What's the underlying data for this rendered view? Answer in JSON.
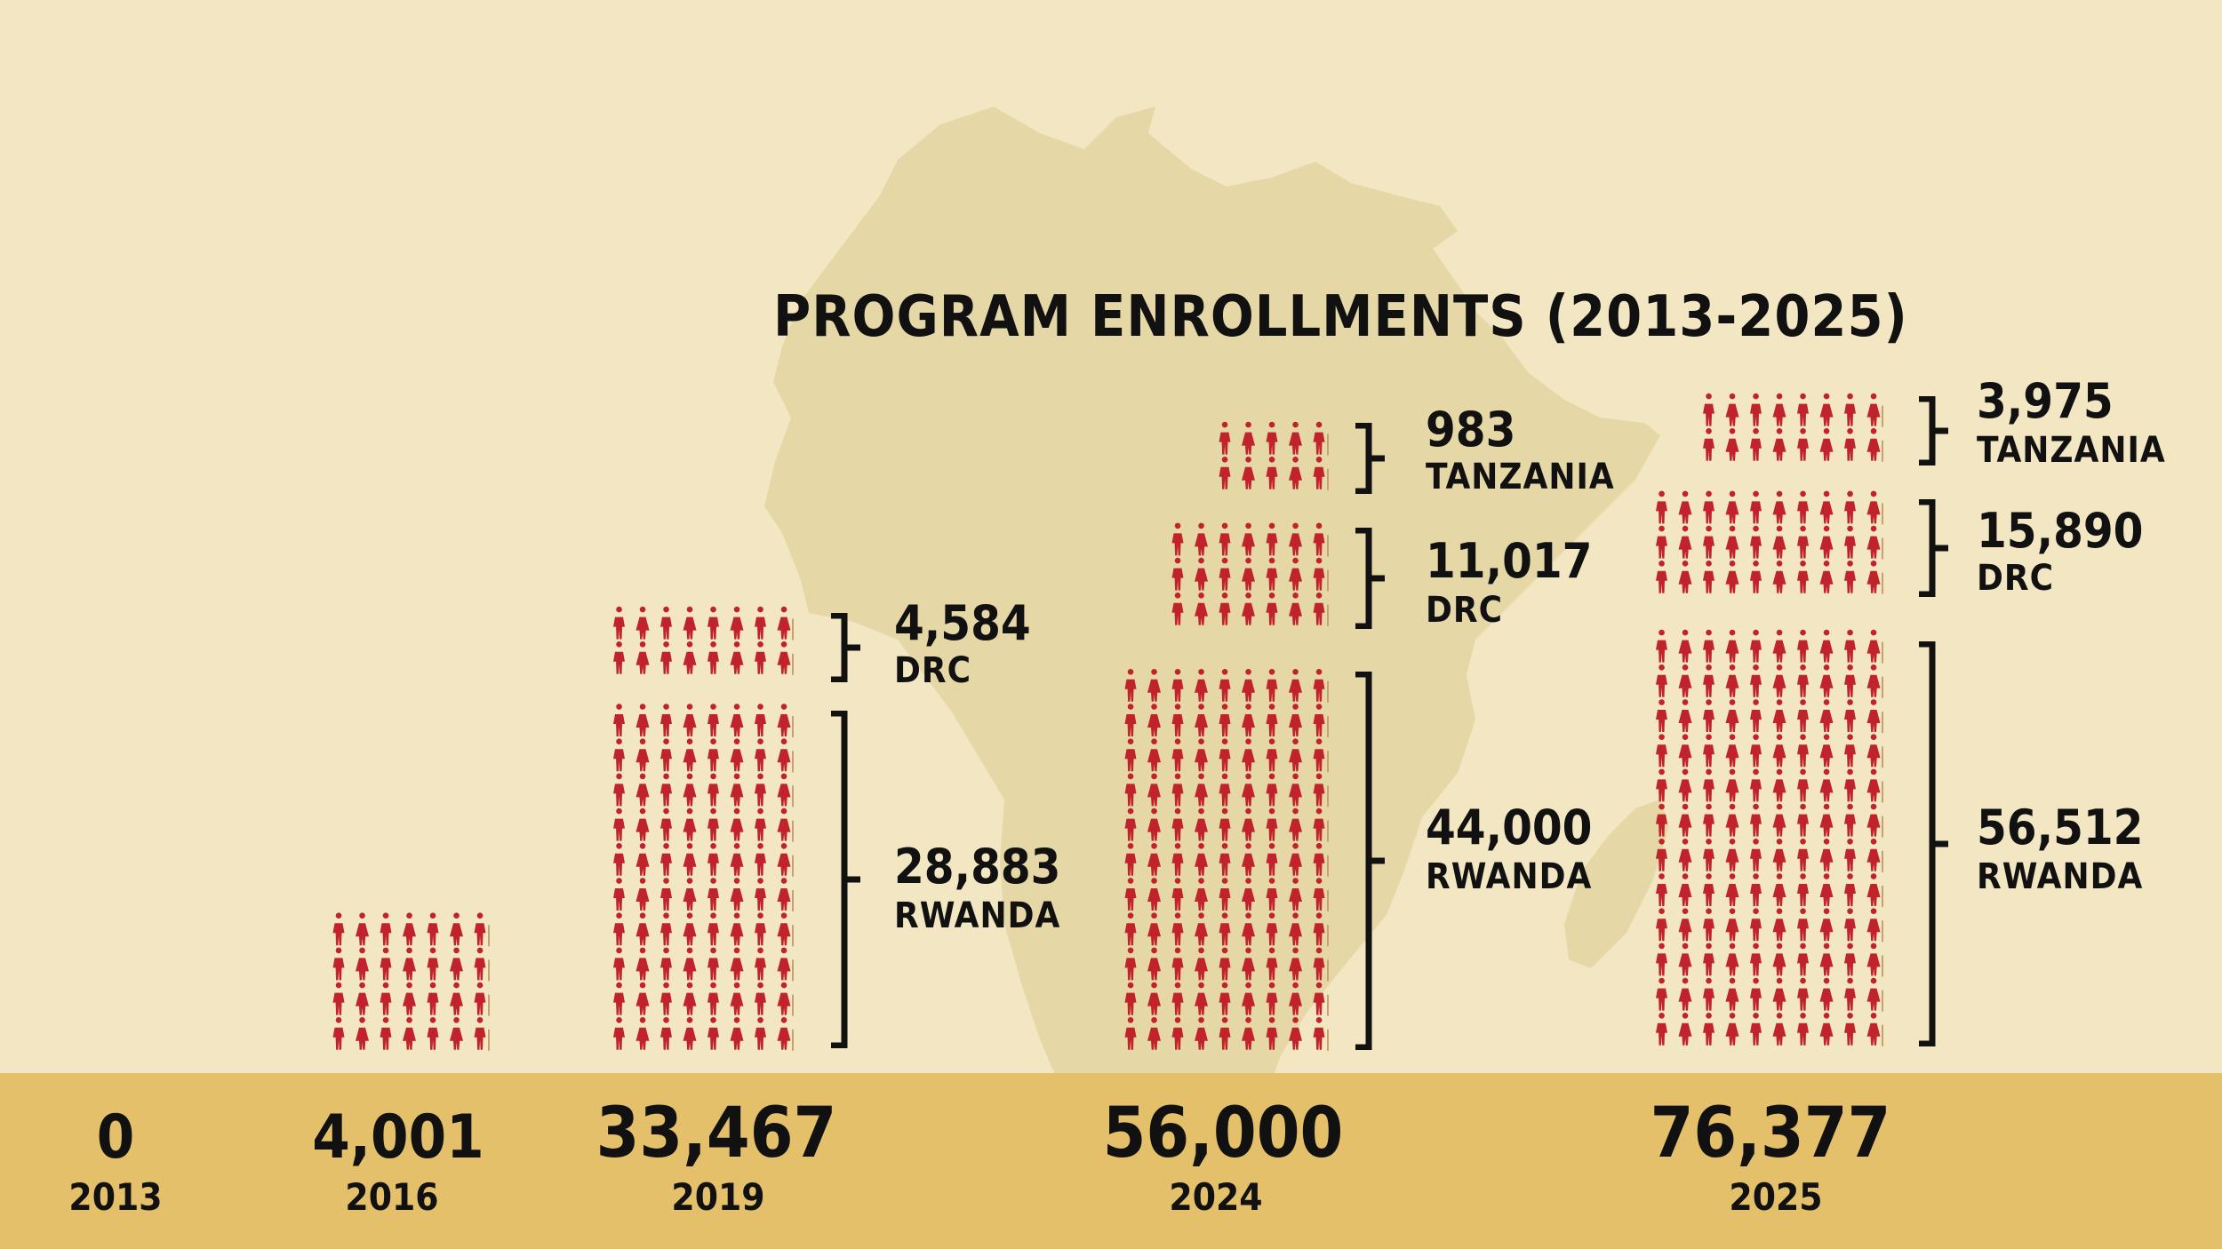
{
  "colors": {
    "background": "#f2e7c2",
    "map": "#e6d7a6",
    "base": "#e4c06a",
    "icon": "#c0232b",
    "text": "#111111"
  },
  "chart_data": {
    "type": "pictogram-stacked-bar",
    "title": "PROGRAM ENROLLMENTS (2013-2025)",
    "icon": "person-icon",
    "x": [
      "2013",
      "2016",
      "2019",
      "2024",
      "2025"
    ],
    "totals": [
      "0",
      "4,001",
      "33,467",
      "56,000",
      "76,377"
    ],
    "columns": [
      {
        "year": "2013",
        "total": "0",
        "segments": []
      },
      {
        "year": "2016",
        "total": "4,001",
        "segments": [
          {
            "country": "",
            "value": "",
            "icons_per_row": 7,
            "rows": 4
          }
        ]
      },
      {
        "year": "2019",
        "total": "33,467",
        "segments": [
          {
            "country": "RWANDA",
            "value": "28,883",
            "icons_per_row": 8,
            "rows": 10
          },
          {
            "country": "DRC",
            "value": "4,584",
            "icons_per_row": 8,
            "rows": 2
          }
        ]
      },
      {
        "year": "2024",
        "total": "56,000",
        "segments": [
          {
            "country": "RWANDA",
            "value": "44,000",
            "icons_per_row": 9,
            "rows": 11
          },
          {
            "country": "DRC",
            "value": "11,017",
            "icons_per_row": 7,
            "rows": 3
          },
          {
            "country": "TANZANIA",
            "value": "983",
            "icons_per_row": 5,
            "rows": 2
          }
        ]
      },
      {
        "year": "2025",
        "total": "76,377",
        "segments": [
          {
            "country": "RWANDA",
            "value": "56,512",
            "icons_per_row": 10,
            "rows": 12
          },
          {
            "country": "DRC",
            "value": "15,890",
            "icons_per_row": 10,
            "rows": 3
          },
          {
            "country": "TANZANIA",
            "value": "3,975",
            "icons_per_row": 8,
            "rows": 2
          }
        ]
      }
    ]
  }
}
